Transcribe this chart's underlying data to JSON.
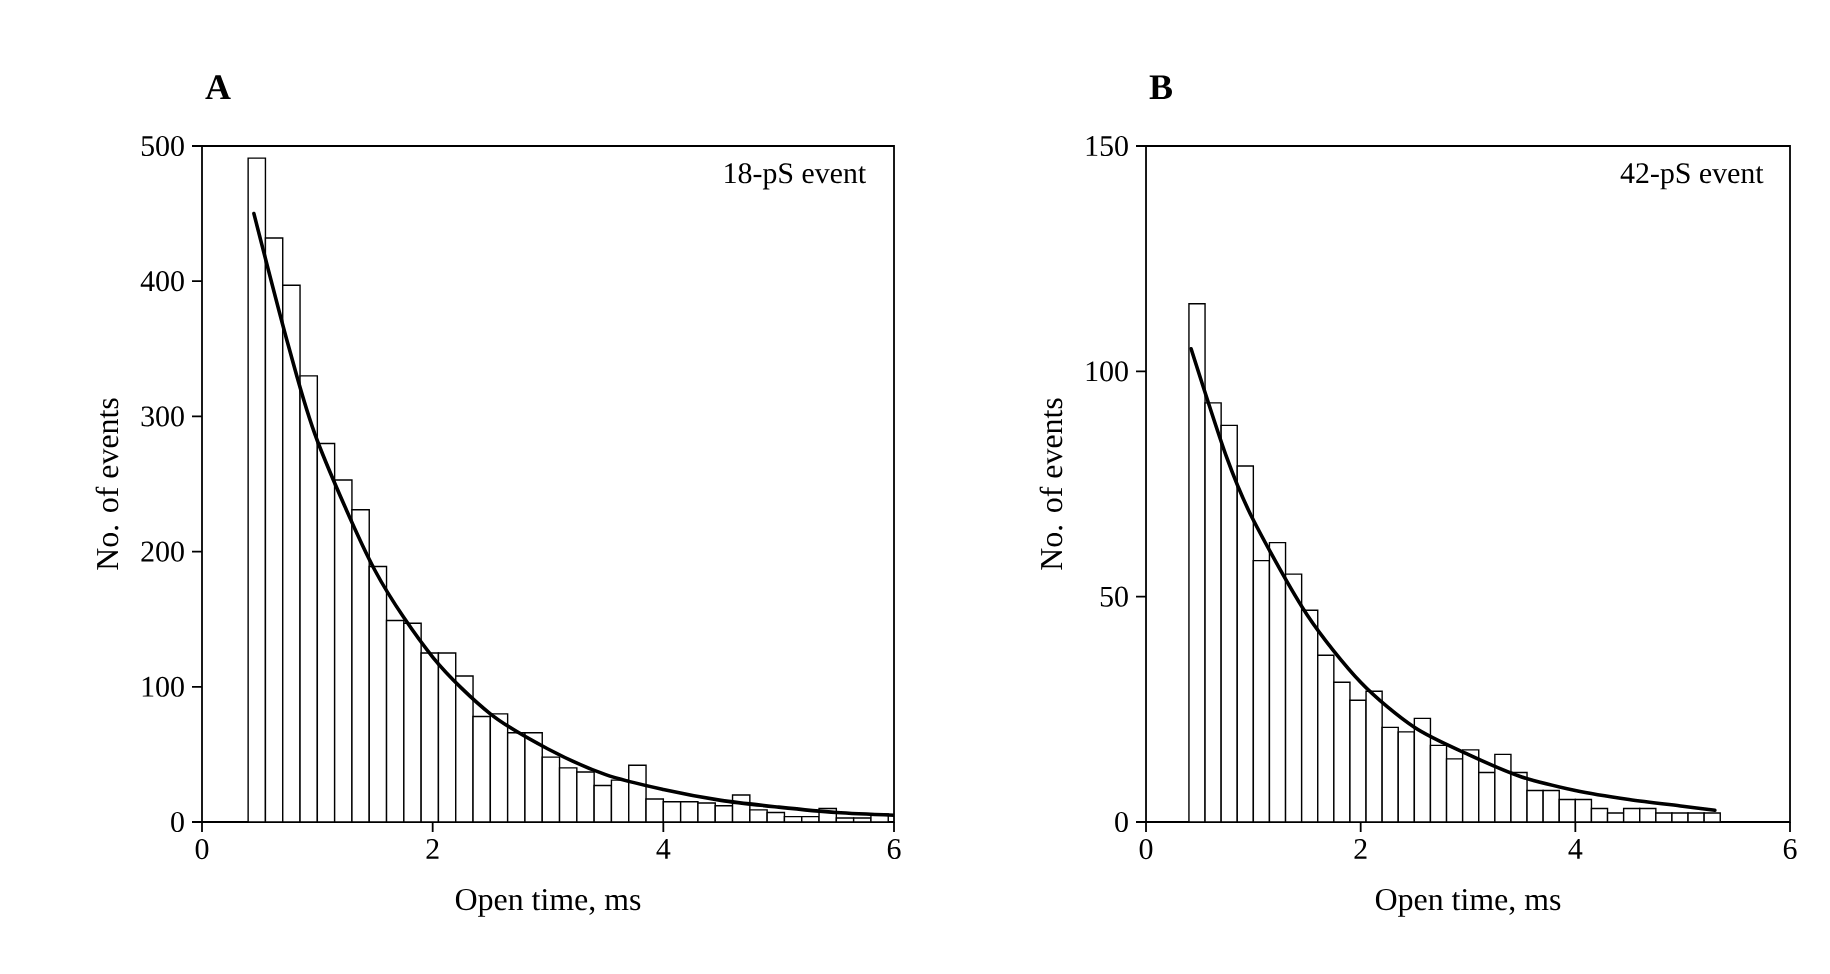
{
  "chart_data": [
    {
      "type": "histogram",
      "title": "A",
      "xlabel": "Open time, ms",
      "ylabel": "No. of events",
      "annotations": [
        "18-pS event"
      ],
      "xlim": [
        0,
        6
      ],
      "xticks": [
        0,
        2,
        4,
        6
      ],
      "ylim": [
        0,
        500
      ],
      "yticks": [
        0,
        100,
        200,
        300,
        400,
        500
      ],
      "series": [
        {
          "type": "histogram",
          "color": "#ffffff",
          "bins": [
            0.4,
            0.55,
            0.7,
            0.85,
            1,
            1.15,
            1.3,
            1.45,
            1.6,
            1.75,
            1.9,
            2.05,
            2.2,
            2.35,
            2.5,
            2.65,
            2.8,
            2.95,
            3.1,
            3.25,
            3.4,
            3.55,
            3.7,
            3.85,
            4,
            4.15,
            4.3,
            4.45,
            4.6,
            4.75,
            4.9,
            5.05,
            5.2,
            5.35,
            5.5,
            5.65,
            5.8,
            5.95
          ],
          "values": [
            491,
            432,
            397,
            330,
            280,
            253,
            231,
            189,
            149,
            147,
            125,
            125,
            108,
            78,
            80,
            66,
            66,
            48,
            40,
            37,
            27,
            31,
            42,
            17,
            15,
            15,
            14,
            12,
            20,
            9,
            7,
            4,
            4,
            10,
            3,
            3,
            6
          ]
        },
        {
          "type": "line",
          "color": "#000000",
          "x": [
            0.45,
            0.75,
            1.0,
            1.5,
            2.0,
            2.5,
            3.0,
            3.5,
            4.0,
            4.5,
            5.0,
            5.5,
            6.0
          ],
          "values": [
            450,
            352,
            282,
            186,
            122,
            80,
            54,
            35,
            24,
            16,
            11,
            7,
            5
          ]
        }
      ]
    },
    {
      "type": "histogram",
      "title": "B",
      "xlabel": "Open time, ms",
      "ylabel": "No. of events",
      "annotations": [
        "42-pS event"
      ],
      "xlim": [
        0,
        6
      ],
      "xticks": [
        0,
        2,
        4,
        6
      ],
      "ylim": [
        0,
        150
      ],
      "yticks": [
        0,
        50,
        100,
        150
      ],
      "series": [
        {
          "type": "histogram",
          "color": "#ffffff",
          "bins": [
            0.4,
            0.55,
            0.7,
            0.85,
            1,
            1.15,
            1.3,
            1.45,
            1.6,
            1.75,
            1.9,
            2.05,
            2.2,
            2.35,
            2.5,
            2.65,
            2.8,
            2.95,
            3.1,
            3.25,
            3.4,
            3.55,
            3.7,
            3.85,
            4,
            4.15,
            4.3,
            4.45,
            4.6,
            4.75,
            4.9,
            5.05,
            5.2,
            5.35
          ],
          "values": [
            115,
            93,
            88,
            79,
            58,
            62,
            55,
            47,
            37,
            31,
            27,
            29,
            21,
            20,
            23,
            17,
            14,
            16,
            11,
            15,
            11,
            7,
            7,
            5,
            5,
            3,
            2,
            3,
            3,
            2,
            2,
            2,
            2
          ]
        },
        {
          "type": "line",
          "color": "#000000",
          "x": [
            0.42,
            0.75,
            1.0,
            1.5,
            2.0,
            2.5,
            3.0,
            3.5,
            4.0,
            4.5,
            5.0,
            5.3
          ],
          "values": [
            105,
            81,
            67,
            46,
            31,
            21,
            15,
            10,
            7,
            5,
            3.5,
            2.6
          ]
        }
      ]
    }
  ]
}
